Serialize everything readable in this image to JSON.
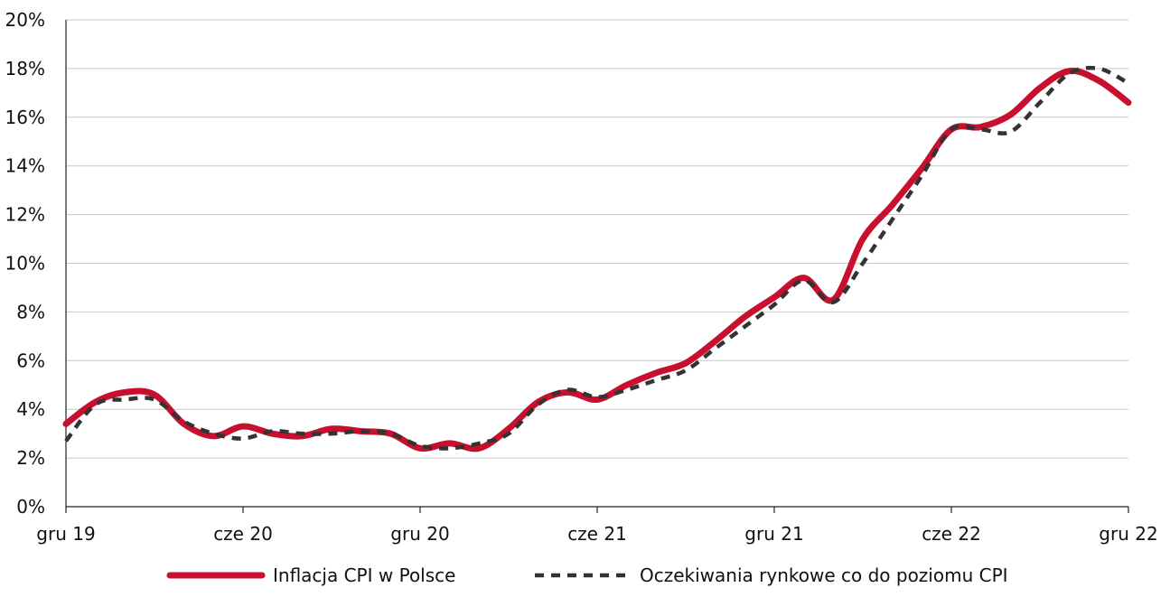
{
  "chart_data": {
    "type": "line",
    "title": "",
    "xlabel": "",
    "ylabel": "",
    "x_tick_labels": [
      "gru 19",
      "cze 20",
      "gru 20",
      "cze 21",
      "gru 21",
      "cze 22",
      "gru 22"
    ],
    "y_tick_labels": [
      "0%",
      "2%",
      "4%",
      "6%",
      "8%",
      "10%",
      "12%",
      "14%",
      "16%",
      "18%",
      "20%"
    ],
    "ylim": [
      0,
      20
    ],
    "y_unit": "%",
    "grid": true,
    "legend_position": "bottom",
    "x": [
      "2019-12",
      "2020-01",
      "2020-02",
      "2020-03",
      "2020-04",
      "2020-05",
      "2020-06",
      "2020-07",
      "2020-08",
      "2020-09",
      "2020-10",
      "2020-11",
      "2020-12",
      "2021-01",
      "2021-02",
      "2021-03",
      "2021-04",
      "2021-05",
      "2021-06",
      "2021-07",
      "2021-08",
      "2021-09",
      "2021-10",
      "2021-11",
      "2021-12",
      "2022-01",
      "2022-02",
      "2022-03",
      "2022-04",
      "2022-05",
      "2022-06",
      "2022-07",
      "2022-08",
      "2022-09",
      "2022-10",
      "2022-11",
      "2022-12"
    ],
    "series": [
      {
        "name": "Inflacja CPI w Polsce",
        "color": "#c8102e",
        "style": "solid",
        "values": [
          3.4,
          4.3,
          4.7,
          4.6,
          3.4,
          2.9,
          3.3,
          3.0,
          2.9,
          3.2,
          3.1,
          3.0,
          2.4,
          2.6,
          2.4,
          3.2,
          4.3,
          4.7,
          4.4,
          5.0,
          5.5,
          5.9,
          6.8,
          7.8,
          8.6,
          9.4,
          8.5,
          11.0,
          12.4,
          13.9,
          15.5,
          15.6,
          16.1,
          17.2,
          17.9,
          17.5,
          16.6
        ]
      },
      {
        "name": "Oczekiwania rynkowe co do poziomu CPI",
        "color": "#333333",
        "style": "dashed",
        "values": [
          2.7,
          4.2,
          4.4,
          4.4,
          3.5,
          3.0,
          2.8,
          3.1,
          3.0,
          3.0,
          3.1,
          3.0,
          2.5,
          2.4,
          2.6,
          3.0,
          4.2,
          4.8,
          4.5,
          4.8,
          5.2,
          5.6,
          6.5,
          7.4,
          8.3,
          9.3,
          8.4,
          10.0,
          11.8,
          13.6,
          15.5,
          15.5,
          15.4,
          16.6,
          17.8,
          18.0,
          17.4
        ]
      }
    ]
  }
}
